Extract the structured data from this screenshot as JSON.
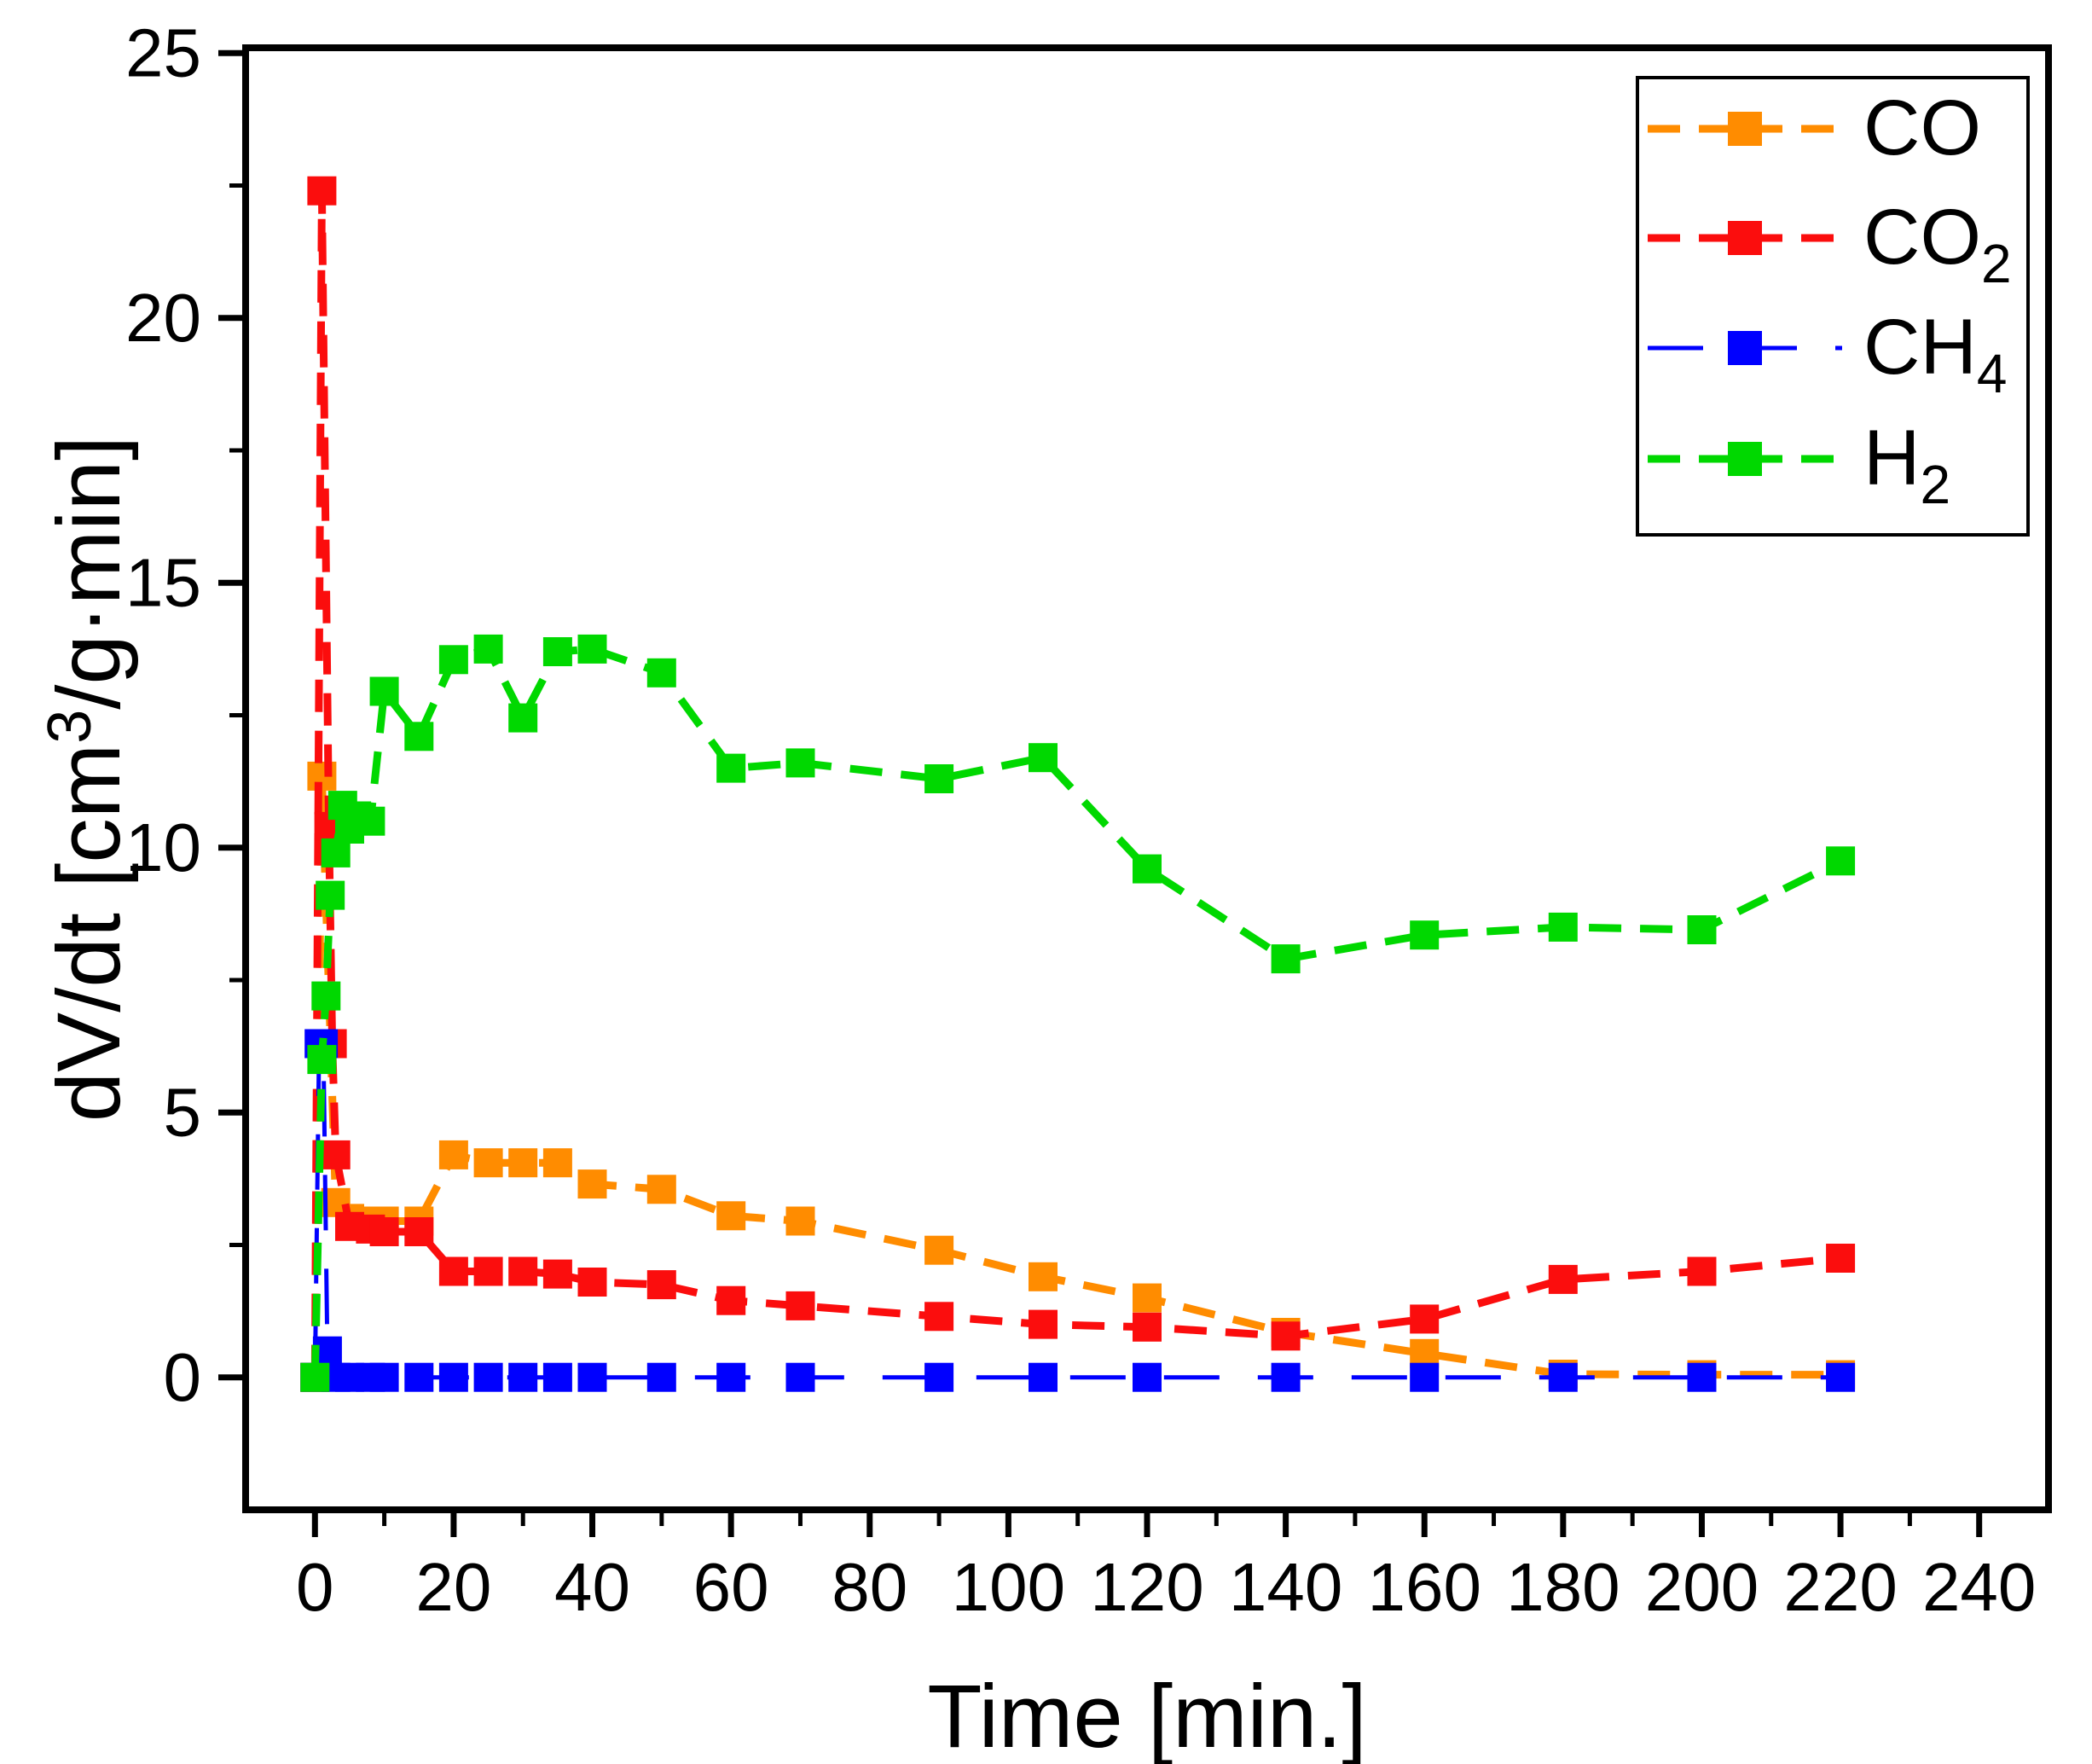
{
  "figure": {
    "background": "#ffffff",
    "frame_color": "#000000"
  },
  "chart_data": {
    "type": "line",
    "title": "",
    "xlabel": "Time [min.]",
    "ylabel": "dV/dt [cm3/g·min]",
    "ylabel_parts": {
      "pre": "dV/dt [cm",
      "sup": "3",
      "post": "/g·min]"
    },
    "xlim": [
      -10,
      250
    ],
    "ylim": [
      -2.5,
      25.1
    ],
    "grid": false,
    "legend_position": "top-right",
    "x_major_ticks": [
      0,
      20,
      40,
      60,
      80,
      100,
      120,
      140,
      160,
      180,
      200,
      220,
      240
    ],
    "x_minor_ticks": [
      10,
      30,
      50,
      70,
      90,
      110,
      130,
      150,
      170,
      190,
      210,
      230
    ],
    "y_major_ticks": [
      0,
      5,
      10,
      15,
      20,
      25
    ],
    "y_minor_ticks": [
      2.5,
      7.5,
      12.5,
      17.5,
      22.5
    ],
    "series": [
      {
        "name": "CO",
        "label_main": "CO",
        "label_sub": "",
        "color": "#ff8c00",
        "line_width": 9,
        "dash": [
          38,
          22
        ],
        "marker_size": 34,
        "points": [
          [
            0,
            0
          ],
          [
            1,
            11.35
          ],
          [
            3,
            3.3
          ],
          [
            5,
            3.0
          ],
          [
            8,
            2.95
          ],
          [
            10,
            2.95
          ],
          [
            15,
            2.95
          ],
          [
            20,
            4.2
          ],
          [
            25,
            4.05
          ],
          [
            30,
            4.05
          ],
          [
            35,
            4.05
          ],
          [
            40,
            3.65
          ],
          [
            50,
            3.55
          ],
          [
            60,
            3.05
          ],
          [
            70,
            2.95
          ],
          [
            90,
            2.4
          ],
          [
            105,
            1.9
          ],
          [
            120,
            1.5
          ],
          [
            140,
            0.85
          ],
          [
            160,
            0.45
          ],
          [
            180,
            0.06
          ],
          [
            200,
            0.05
          ],
          [
            220,
            0.05
          ]
        ]
      },
      {
        "name": "CO2",
        "label_main": "CO",
        "label_sub": "2",
        "color": "#fb0d0d",
        "line_width": 9,
        "dash": [
          38,
          22
        ],
        "marker_size": 34,
        "points": [
          [
            0,
            0
          ],
          [
            1,
            22.4
          ],
          [
            2,
            10.4
          ],
          [
            2.5,
            6.3
          ],
          [
            3,
            4.2
          ],
          [
            5,
            2.85
          ],
          [
            8,
            2.8
          ],
          [
            10,
            2.75
          ],
          [
            15,
            2.75
          ],
          [
            20,
            2.0
          ],
          [
            25,
            2.0
          ],
          [
            30,
            2.0
          ],
          [
            35,
            1.95
          ],
          [
            40,
            1.8
          ],
          [
            50,
            1.75
          ],
          [
            60,
            1.45
          ],
          [
            70,
            1.35
          ],
          [
            90,
            1.15
          ],
          [
            105,
            1.0
          ],
          [
            120,
            0.95
          ],
          [
            140,
            0.78
          ],
          [
            160,
            1.1
          ],
          [
            180,
            1.85
          ],
          [
            200,
            2.0
          ],
          [
            220,
            2.25
          ]
        ]
      },
      {
        "name": "CH4",
        "label_main": "CH",
        "label_sub": "4",
        "color": "#0000ff",
        "line_width": 5,
        "dash": [
          65,
          45
        ],
        "marker_size": 34,
        "points": [
          [
            0,
            0
          ],
          [
            0.6,
            6.3
          ],
          [
            1.2,
            6.3
          ],
          [
            1.8,
            0.5
          ],
          [
            3,
            0
          ],
          [
            5,
            0
          ],
          [
            8,
            0
          ],
          [
            10,
            0
          ],
          [
            15,
            0
          ],
          [
            20,
            0
          ],
          [
            25,
            0
          ],
          [
            30,
            0
          ],
          [
            35,
            0
          ],
          [
            40,
            0
          ],
          [
            50,
            0
          ],
          [
            60,
            0
          ],
          [
            70,
            0
          ],
          [
            90,
            0
          ],
          [
            105,
            0
          ],
          [
            120,
            0
          ],
          [
            140,
            0
          ],
          [
            160,
            0
          ],
          [
            180,
            0
          ],
          [
            200,
            0
          ],
          [
            220,
            0
          ]
        ]
      },
      {
        "name": "H2",
        "label_main": "H",
        "label_sub": "2",
        "color": "#00d800",
        "line_width": 9,
        "dash": [
          38,
          22
        ],
        "marker_size": 34,
        "points": [
          [
            0,
            0
          ],
          [
            1,
            6.0
          ],
          [
            1.6,
            7.2
          ],
          [
            2.2,
            9.1
          ],
          [
            3,
            9.9
          ],
          [
            4,
            10.8
          ],
          [
            5,
            10.35
          ],
          [
            6,
            10.6
          ],
          [
            8,
            10.5
          ],
          [
            10,
            12.95
          ],
          [
            15,
            12.1
          ],
          [
            20,
            13.55
          ],
          [
            25,
            13.75
          ],
          [
            30,
            12.45
          ],
          [
            35,
            13.7
          ],
          [
            40,
            13.75
          ],
          [
            50,
            13.3
          ],
          [
            60,
            11.5
          ],
          [
            70,
            11.6
          ],
          [
            90,
            11.3
          ],
          [
            105,
            11.7
          ],
          [
            120,
            9.6
          ],
          [
            140,
            7.9
          ],
          [
            160,
            8.35
          ],
          [
            180,
            8.5
          ],
          [
            200,
            8.45
          ],
          [
            220,
            9.75
          ]
        ]
      }
    ]
  }
}
